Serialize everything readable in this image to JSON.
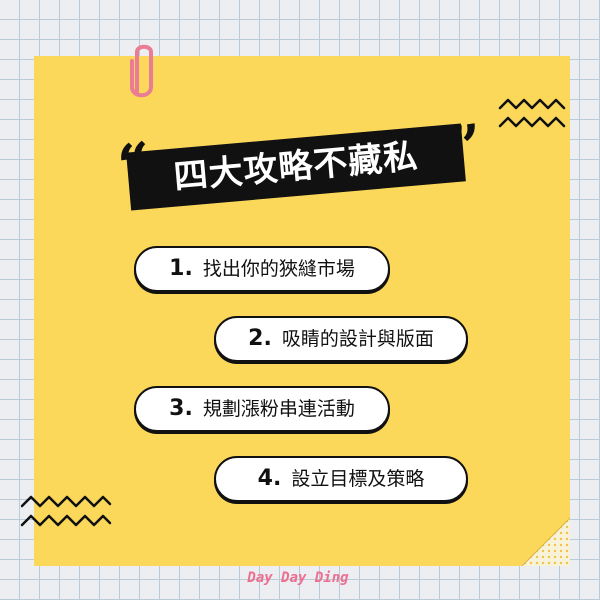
{
  "title": {
    "text": "四大攻略不藏私",
    "quote_left": "“",
    "quote_right": "”"
  },
  "items": [
    {
      "number": "1.",
      "label": "找出你的狹縫市場"
    },
    {
      "number": "2.",
      "label": "吸睛的設計與版面"
    },
    {
      "number": "3.",
      "label": "規劃漲粉串連活動"
    },
    {
      "number": "4.",
      "label": "設立目標及策略"
    }
  ],
  "brand": "Day Day Ding",
  "decorations": {
    "paperclip": "paperclip-icon",
    "zigzag_top_right": "zigzag-lines-icon",
    "zigzag_bottom_left": "zigzag-lines-icon",
    "page_fold": "page-fold-icon"
  },
  "colors": {
    "background": "#eceef1",
    "grid": "#b9cbd9",
    "card": "#fbd85a",
    "title_bg": "#111111",
    "pill_bg": "#ffffff",
    "outline": "#111111",
    "paperclip": "#ea7c93",
    "brand": "#ee6e90",
    "fold": "#f8f3d8"
  }
}
